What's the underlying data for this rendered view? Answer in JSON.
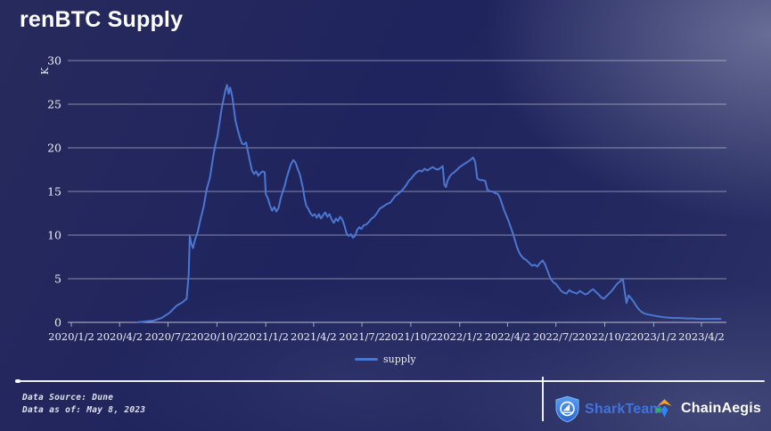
{
  "header": {
    "title": "renBTC Supply"
  },
  "legend": {
    "items": [
      "supply"
    ]
  },
  "footer": {
    "data_source": "Data Source: Dune",
    "data_as_of": "Data as of: May 8, 2023",
    "sharkteam_label": "SharkTeam",
    "chainaegis_label": "ChainAegis"
  },
  "colors": {
    "background_dark": "#20245e",
    "background_light": "#585d80",
    "line": "#4b77d1",
    "grid": "#d8dbe6",
    "axis_text": "#eceef6",
    "sharkteam_blue": "#3f74e0",
    "shield_blue_top": "#58a0f2",
    "shield_blue_bottom": "#2a62d2",
    "chainaegis_yellow": "#f6a818",
    "chainaegis_green": "#2fb44e",
    "chainaegis_blue": "#2e86f0"
  },
  "chart_data": {
    "type": "line",
    "title": "renBTC Supply",
    "xlabel": "",
    "ylabel": "K",
    "unit": "K",
    "ylim": [
      0,
      30
    ],
    "y_ticks": [
      0,
      5,
      10,
      15,
      20,
      25,
      30
    ],
    "x_tick_labels": [
      "2020/1/2",
      "2020/4/2",
      "2020/7/2",
      "2020/10/2",
      "2021/1/2",
      "2021/4/2",
      "2021/7/2",
      "2021/10/2",
      "2022/1/2",
      "2022/4/2",
      "2022/7/2",
      "2022/10/2",
      "2023/1/2",
      "2023/4/2"
    ],
    "x_range": [
      "2020/1/2",
      "2023/5/8"
    ],
    "grid": true,
    "legend_position": "bottom",
    "series": [
      {
        "name": "supply",
        "color": "#4b77d1",
        "points": [
          [
            "2020/5/5",
            0
          ],
          [
            "2020/5/20",
            0.1
          ],
          [
            "2020/6/5",
            0.2
          ],
          [
            "2020/6/20",
            0.5
          ],
          [
            "2020/7/5",
            1.1
          ],
          [
            "2020/7/18",
            1.9
          ],
          [
            "2020/7/29",
            2.3
          ],
          [
            "2020/8/6",
            2.7
          ],
          [
            "2020/8/10",
            5.5
          ],
          [
            "2020/8/12",
            9.9
          ],
          [
            "2020/8/15",
            9.0
          ],
          [
            "2020/8/18",
            8.5
          ],
          [
            "2020/8/22",
            9.5
          ],
          [
            "2020/8/27",
            10.4
          ],
          [
            "2020/9/1",
            11.8
          ],
          [
            "2020/9/7",
            13.2
          ],
          [
            "2020/9/13",
            15.3
          ],
          [
            "2020/9/19",
            16.6
          ],
          [
            "2020/9/25",
            19.0
          ],
          [
            "2020/9/29",
            20.3
          ],
          [
            "2020/10/3",
            21.3
          ],
          [
            "2020/10/7",
            22.9
          ],
          [
            "2020/10/11",
            24.5
          ],
          [
            "2020/10/15",
            25.7
          ],
          [
            "2020/10/18",
            26.6
          ],
          [
            "2020/10/21",
            27.2
          ],
          [
            "2020/10/24",
            26.2
          ],
          [
            "2020/10/27",
            26.9
          ],
          [
            "2020/10/31",
            25.9
          ],
          [
            "2020/11/3",
            24.5
          ],
          [
            "2020/11/6",
            23.1
          ],
          [
            "2020/11/10",
            22.1
          ],
          [
            "2020/11/14",
            21.2
          ],
          [
            "2020/11/18",
            20.5
          ],
          [
            "2020/11/22",
            20.4
          ],
          [
            "2020/11/26",
            20.6
          ],
          [
            "2020/11/29",
            19.7
          ],
          [
            "2020/12/3",
            18.5
          ],
          [
            "2020/12/7",
            17.4
          ],
          [
            "2020/12/11",
            17.0
          ],
          [
            "2020/12/15",
            17.3
          ],
          [
            "2020/12/19",
            16.8
          ],
          [
            "2020/12/23",
            17.1
          ],
          [
            "2020/12/27",
            17.3
          ],
          [
            "2020/12/31",
            17.2
          ],
          [
            "2021/1/2",
            14.7
          ],
          [
            "2021/1/6",
            14.2
          ],
          [
            "2021/1/10",
            13.4
          ],
          [
            "2021/1/14",
            12.8
          ],
          [
            "2021/1/18",
            13.2
          ],
          [
            "2021/1/22",
            12.7
          ],
          [
            "2021/1/26",
            13.1
          ],
          [
            "2021/1/30",
            14.2
          ],
          [
            "2021/2/3",
            15.0
          ],
          [
            "2021/2/7",
            15.7
          ],
          [
            "2021/2/11",
            16.7
          ],
          [
            "2021/2/15",
            17.5
          ],
          [
            "2021/2/19",
            18.2
          ],
          [
            "2021/2/23",
            18.6
          ],
          [
            "2021/2/27",
            18.3
          ],
          [
            "2021/3/3",
            17.6
          ],
          [
            "2021/3/7",
            17.0
          ],
          [
            "2021/3/10",
            16.2
          ],
          [
            "2021/3/13",
            15.4
          ],
          [
            "2021/3/16",
            14.2
          ],
          [
            "2021/3/19",
            13.4
          ],
          [
            "2021/3/23",
            13.0
          ],
          [
            "2021/3/27",
            12.5
          ],
          [
            "2021/3/31",
            12.2
          ],
          [
            "2021/4/4",
            12.4
          ],
          [
            "2021/4/8",
            12.0
          ],
          [
            "2021/4/12",
            12.4
          ],
          [
            "2021/4/16",
            11.9
          ],
          [
            "2021/4/20",
            12.3
          ],
          [
            "2021/4/24",
            12.6
          ],
          [
            "2021/4/28",
            12.1
          ],
          [
            "2021/5/2",
            12.4
          ],
          [
            "2021/5/6",
            11.8
          ],
          [
            "2021/5/10",
            11.4
          ],
          [
            "2021/5/14",
            11.9
          ],
          [
            "2021/5/18",
            11.6
          ],
          [
            "2021/5/22",
            12.1
          ],
          [
            "2021/5/26",
            11.8
          ],
          [
            "2021/5/30",
            11.1
          ],
          [
            "2021/6/3",
            10.2
          ],
          [
            "2021/6/7",
            9.9
          ],
          [
            "2021/6/11",
            10.1
          ],
          [
            "2021/6/15",
            9.7
          ],
          [
            "2021/6/19",
            9.9
          ],
          [
            "2021/6/23",
            10.6
          ],
          [
            "2021/6/27",
            10.9
          ],
          [
            "2021/7/1",
            10.7
          ],
          [
            "2021/7/5",
            11.1
          ],
          [
            "2021/7/10",
            11.2
          ],
          [
            "2021/7/15",
            11.5
          ],
          [
            "2021/7/20",
            11.9
          ],
          [
            "2021/7/25",
            12.1
          ],
          [
            "2021/7/30",
            12.5
          ],
          [
            "2021/8/4",
            13.0
          ],
          [
            "2021/8/9",
            13.2
          ],
          [
            "2021/8/14",
            13.4
          ],
          [
            "2021/8/19",
            13.6
          ],
          [
            "2021/8/24",
            13.7
          ],
          [
            "2021/8/29",
            14.1
          ],
          [
            "2021/9/3",
            14.5
          ],
          [
            "2021/9/8",
            14.7
          ],
          [
            "2021/9/13",
            15.0
          ],
          [
            "2021/9/18",
            15.3
          ],
          [
            "2021/9/23",
            15.7
          ],
          [
            "2021/9/28",
            16.2
          ],
          [
            "2021/10/3",
            16.5
          ],
          [
            "2021/10/8",
            16.9
          ],
          [
            "2021/10/13",
            17.2
          ],
          [
            "2021/10/18",
            17.4
          ],
          [
            "2021/10/23",
            17.3
          ],
          [
            "2021/10/28",
            17.6
          ],
          [
            "2021/11/2",
            17.4
          ],
          [
            "2021/11/7",
            17.6
          ],
          [
            "2021/11/12",
            17.8
          ],
          [
            "2021/11/17",
            17.6
          ],
          [
            "2021/11/22",
            17.5
          ],
          [
            "2021/11/27",
            17.7
          ],
          [
            "2021/12/1",
            17.9
          ],
          [
            "2021/12/4",
            15.8
          ],
          [
            "2021/12/7",
            15.5
          ],
          [
            "2021/12/10",
            16.2
          ],
          [
            "2021/12/14",
            16.7
          ],
          [
            "2021/12/18",
            17.0
          ],
          [
            "2021/12/23",
            17.2
          ],
          [
            "2021/12/28",
            17.5
          ],
          [
            "2022/1/2",
            17.8
          ],
          [
            "2022/1/7",
            18.0
          ],
          [
            "2022/1/12",
            18.2
          ],
          [
            "2022/1/17",
            18.4
          ],
          [
            "2022/1/22",
            18.6
          ],
          [
            "2022/1/27",
            18.9
          ],
          [
            "2022/1/31",
            18.4
          ],
          [
            "2022/2/4",
            16.5
          ],
          [
            "2022/2/9",
            16.3
          ],
          [
            "2022/2/14",
            16.3
          ],
          [
            "2022/2/19",
            16.2
          ],
          [
            "2022/2/23",
            15.2
          ],
          [
            "2022/2/28",
            15.0
          ],
          [
            "2022/3/5",
            15.0
          ],
          [
            "2022/3/10",
            14.8
          ],
          [
            "2022/3/15",
            14.7
          ],
          [
            "2022/3/19",
            14.2
          ],
          [
            "2022/3/23",
            13.5
          ],
          [
            "2022/3/27",
            12.8
          ],
          [
            "2022/3/31",
            12.2
          ],
          [
            "2022/4/4",
            11.6
          ],
          [
            "2022/4/8",
            10.9
          ],
          [
            "2022/4/12",
            10.2
          ],
          [
            "2022/4/16",
            9.4
          ],
          [
            "2022/4/20",
            8.6
          ],
          [
            "2022/4/24",
            8.0
          ],
          [
            "2022/4/28",
            7.6
          ],
          [
            "2022/5/3",
            7.3
          ],
          [
            "2022/5/8",
            7.1
          ],
          [
            "2022/5/13",
            6.8
          ],
          [
            "2022/5/18",
            6.5
          ],
          [
            "2022/5/23",
            6.6
          ],
          [
            "2022/5/28",
            6.4
          ],
          [
            "2022/6/2",
            6.8
          ],
          [
            "2022/6/7",
            7.1
          ],
          [
            "2022/6/12",
            6.6
          ],
          [
            "2022/6/17",
            5.8
          ],
          [
            "2022/6/22",
            5.0
          ],
          [
            "2022/6/27",
            4.6
          ],
          [
            "2022/7/2",
            4.4
          ],
          [
            "2022/7/7",
            4.0
          ],
          [
            "2022/7/12",
            3.6
          ],
          [
            "2022/7/17",
            3.4
          ],
          [
            "2022/7/22",
            3.3
          ],
          [
            "2022/7/27",
            3.7
          ],
          [
            "2022/8/1",
            3.5
          ],
          [
            "2022/8/6",
            3.4
          ],
          [
            "2022/8/11",
            3.3
          ],
          [
            "2022/8/16",
            3.6
          ],
          [
            "2022/8/21",
            3.4
          ],
          [
            "2022/8/26",
            3.2
          ],
          [
            "2022/8/31",
            3.3
          ],
          [
            "2022/9/5",
            3.6
          ],
          [
            "2022/9/10",
            3.8
          ],
          [
            "2022/9/15",
            3.5
          ],
          [
            "2022/9/20",
            3.2
          ],
          [
            "2022/9/25",
            2.9
          ],
          [
            "2022/9/30",
            2.7
          ],
          [
            "2022/10/5",
            3.0
          ],
          [
            "2022/10/10",
            3.3
          ],
          [
            "2022/10/15",
            3.6
          ],
          [
            "2022/10/20",
            4.0
          ],
          [
            "2022/10/25",
            4.4
          ],
          [
            "2022/10/31",
            4.7
          ],
          [
            "2022/11/5",
            5.0
          ],
          [
            "2022/11/9",
            3.3
          ],
          [
            "2022/11/12",
            2.2
          ],
          [
            "2022/11/16",
            3.1
          ],
          [
            "2022/11/20",
            2.8
          ],
          [
            "2022/11/25",
            2.4
          ],
          [
            "2022/11/30",
            1.9
          ],
          [
            "2022/12/5",
            1.5
          ],
          [
            "2022/12/10",
            1.2
          ],
          [
            "2022/12/16",
            1.0
          ],
          [
            "2022/12/23",
            0.9
          ],
          [
            "2022/12/31",
            0.8
          ],
          [
            "2023/1/9",
            0.7
          ],
          [
            "2023/1/19",
            0.6
          ],
          [
            "2023/1/29",
            0.55
          ],
          [
            "2023/2/9",
            0.5
          ],
          [
            "2023/2/21",
            0.5
          ],
          [
            "2023/3/5",
            0.45
          ],
          [
            "2023/3/17",
            0.45
          ],
          [
            "2023/3/29",
            0.4
          ],
          [
            "2023/4/11",
            0.4
          ],
          [
            "2023/4/25",
            0.4
          ],
          [
            "2023/5/8",
            0.4
          ]
        ]
      }
    ]
  }
}
